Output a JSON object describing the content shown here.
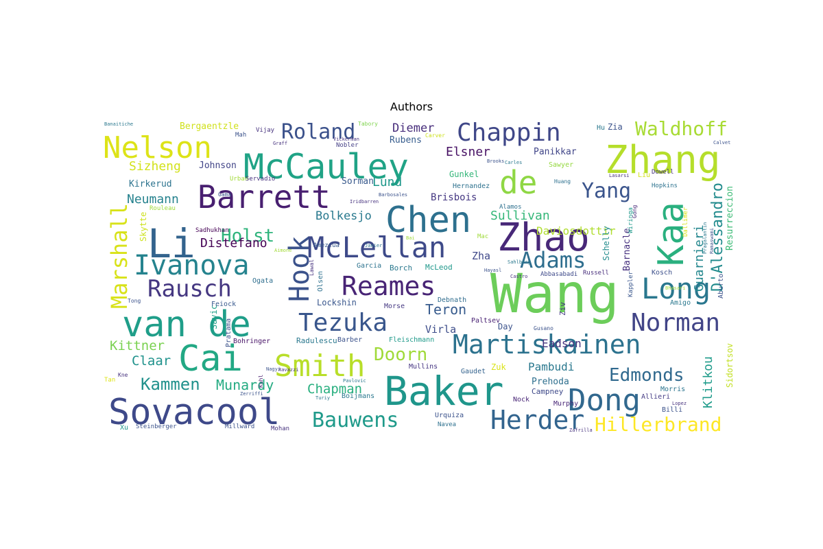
{
  "title": "Authors",
  "words": [
    {
      "text": "Wang",
      "color": "#6ccd5a"
    },
    {
      "text": "Baker",
      "color": "#1f968b"
    },
    {
      "text": "McCauley",
      "color": "#20a386"
    },
    {
      "text": "Zhang",
      "color": "#b5de2b"
    },
    {
      "text": "Chen",
      "color": "#2d708e"
    },
    {
      "text": "Zhao",
      "color": "#482878"
    },
    {
      "text": "Sovacool",
      "color": "#3e4989"
    },
    {
      "text": "van de",
      "color": "#1f9e89"
    },
    {
      "text": "Li",
      "color": "#33638d"
    },
    {
      "text": "Kaa",
      "color": "#2ab07f"
    },
    {
      "text": "Cai",
      "color": "#22a884"
    },
    {
      "text": "de",
      "color": "#8fd744"
    },
    {
      "text": "Hook",
      "color": "#3b528b"
    },
    {
      "text": "Nelson",
      "color": "#dde318"
    },
    {
      "text": "Barrett",
      "color": "#481f70"
    },
    {
      "text": "McLellan",
      "color": "#3e4a89"
    },
    {
      "text": "Martiskainen",
      "color": "#2c728e"
    },
    {
      "text": "Smith",
      "color": "#b8de29"
    },
    {
      "text": "Tezuka",
      "color": "#39568c"
    },
    {
      "text": "Ivanova",
      "color": "#25838e"
    },
    {
      "text": "Reames",
      "color": "#482475"
    },
    {
      "text": "Marshall",
      "color": "#d8e219"
    },
    {
      "text": "Dong",
      "color": "#31688e"
    },
    {
      "text": "Chappin",
      "color": "#3f4788"
    },
    {
      "text": "Long",
      "color": "#2a778e"
    },
    {
      "text": "Rausch",
      "color": "#453781"
    },
    {
      "text": "Norman",
      "color": "#414487"
    },
    {
      "text": "Herder",
      "color": "#32648e"
    },
    {
      "text": "Bauwens",
      "color": "#1f9a8a"
    },
    {
      "text": "Hillerbrand",
      "color": "#fde725"
    },
    {
      "text": "Adams",
      "color": "#2e6e8e"
    },
    {
      "text": "Yang",
      "color": "#3a548c"
    },
    {
      "text": "Waldhoff",
      "color": "#a8db34"
    },
    {
      "text": "Edmonds",
      "color": "#30698e"
    },
    {
      "text": "Kammen",
      "color": "#21918c"
    },
    {
      "text": "Roland",
      "color": "#3b518b"
    },
    {
      "text": "Holst",
      "color": "#2fb47c"
    },
    {
      "text": "Doorn",
      "color": "#a0da39"
    },
    {
      "text": "D'Alessandro",
      "color": "#228b8d"
    },
    {
      "text": "Munardy",
      "color": "#25ab82"
    },
    {
      "text": "Distefano",
      "color": "#440154"
    },
    {
      "text": "Teron",
      "color": "#375b8d"
    },
    {
      "text": "Chapman",
      "color": "#29af7f"
    },
    {
      "text": "Klitkou",
      "color": "#1e9b8a"
    },
    {
      "text": "Guarnieri",
      "color": "#24878e"
    },
    {
      "text": "Claar",
      "color": "#20928c"
    },
    {
      "text": "Kittner",
      "color": "#7ad151"
    },
    {
      "text": "Sizheng",
      "color": "#d2e21b"
    },
    {
      "text": "Neumann",
      "color": "#26828e"
    },
    {
      "text": "Daviosdottir",
      "color": "#b0dd2f"
    },
    {
      "text": "Sullivan",
      "color": "#35b779"
    },
    {
      "text": "Elsner",
      "color": "#471164"
    },
    {
      "text": "Diemer",
      "color": "#472d7b"
    },
    {
      "text": "Bolkesjo",
      "color": "#29798e"
    },
    {
      "text": "Lund",
      "color": "#1f988b"
    },
    {
      "text": "Pambudi",
      "color": "#2a788e"
    },
    {
      "text": "Eadson",
      "color": "#46337e"
    },
    {
      "text": "Virla",
      "color": "#3d4d8a"
    },
    {
      "text": "Zha",
      "color": "#3f4889"
    },
    {
      "text": "Johnson",
      "color": "#414487"
    },
    {
      "text": "Kirkerud",
      "color": "#2c738e"
    },
    {
      "text": "Sorman",
      "color": "#38598c"
    },
    {
      "text": "Brisbois",
      "color": "#453882"
    },
    {
      "text": "Bergaentzle",
      "color": "#d0e11c"
    },
    {
      "text": "Rubens",
      "color": "#365c8d"
    },
    {
      "text": "Panikkar",
      "color": "#404588"
    },
    {
      "text": "Gunkel",
      "color": "#34b679"
    },
    {
      "text": "Hernandez",
      "color": "#2d718e"
    },
    {
      "text": "Lockshin",
      "color": "#39568c"
    },
    {
      "text": "Barnacle",
      "color": "#46307e"
    },
    {
      "text": "Resurreccion",
      "color": "#3bbb75"
    },
    {
      "text": "Skytte",
      "color": "#cde11d"
    },
    {
      "text": "Savic",
      "color": "#1f9f88"
    },
    {
      "text": "Feiock",
      "color": "#38588c"
    },
    {
      "text": "Prehoda",
      "color": "#2e6f8e"
    },
    {
      "text": "Campney",
      "color": "#3e4989"
    },
    {
      "text": "Nock",
      "color": "#482576"
    },
    {
      "text": "Murphy",
      "color": "#482677"
    },
    {
      "text": "Allieri",
      "color": "#443b84"
    },
    {
      "text": "Billi",
      "color": "#3b528b"
    },
    {
      "text": "Morris",
      "color": "#2b748e"
    },
    {
      "text": "Sidortsov",
      "color": "#c2df23"
    },
    {
      "text": "Schelly",
      "color": "#228c8d"
    },
    {
      "text": "Kosch",
      "color": "#3c4f8a"
    },
    {
      "text": "Mullins",
      "color": "#453581"
    },
    {
      "text": "Gaudet",
      "color": "#33628d"
    },
    {
      "text": "Zuk",
      "color": "#dae319"
    },
    {
      "text": "Day",
      "color": "#3b528b"
    },
    {
      "text": "Paltsev",
      "color": "#482173"
    },
    {
      "text": "Debnath",
      "color": "#2f6c8e"
    },
    {
      "text": "Morse",
      "color": "#453882"
    },
    {
      "text": "Barber",
      "color": "#3b528b"
    },
    {
      "text": "Fleischmann",
      "color": "#1f9a8a"
    },
    {
      "text": "Radulescu",
      "color": "#2a788e"
    },
    {
      "text": "Bohringer",
      "color": "#481467"
    },
    {
      "text": "Pratama",
      "color": "#3b528b"
    },
    {
      "text": "Ogata",
      "color": "#2e6e8e"
    },
    {
      "text": "Olsen",
      "color": "#2d708e"
    },
    {
      "text": "Lawal",
      "color": "#46327e"
    },
    {
      "text": "Borch",
      "color": "#2a788e"
    },
    {
      "text": "McLeod",
      "color": "#1f988b"
    },
    {
      "text": "Garcia",
      "color": "#2c728e"
    },
    {
      "text": "Amezcua",
      "color": "#38598c"
    },
    {
      "text": "Sadhukhan",
      "color": "#440154"
    },
    {
      "text": "Rouleau",
      "color": "#9fda3a"
    },
    {
      "text": "Gama",
      "color": "#3b528b"
    },
    {
      "text": "Urban",
      "color": "#a2da37"
    },
    {
      "text": "Servadio",
      "color": "#46307e"
    },
    {
      "text": "Mah",
      "color": "#3b528b"
    },
    {
      "text": "Vijay",
      "color": "#46327e"
    },
    {
      "text": "Tabory",
      "color": "#7fd34e"
    },
    {
      "text": "Nobler",
      "color": "#433e85"
    },
    {
      "text": "Carver",
      "color": "#cde11d"
    },
    {
      "text": "Hu",
      "color": "#2a788e"
    },
    {
      "text": "Zia",
      "color": "#3b528b"
    },
    {
      "text": "Sawyer",
      "color": "#95d840"
    },
    {
      "text": "Huang",
      "color": "#2d708e"
    },
    {
      "text": "Liu",
      "color": "#d2e21b"
    },
    {
      "text": "Dowell",
      "color": "#46327e"
    },
    {
      "text": "Hopkins",
      "color": "#2c728e"
    },
    {
      "text": "Gong",
      "color": "#482878"
    },
    {
      "text": "Wiringa",
      "color": "#1f988b"
    },
    {
      "text": "Kappler",
      "color": "#39568c"
    },
    {
      "text": "Abbasabadi",
      "color": "#3e4989"
    },
    {
      "text": "Russell",
      "color": "#472d7b"
    },
    {
      "text": "Alamos",
      "color": "#2d708e"
    },
    {
      "text": "Mac",
      "color": "#9fda3a"
    },
    {
      "text": "Ziv",
      "color": "#453882"
    },
    {
      "text": "Gusano",
      "color": "#3b528b"
    },
    {
      "text": "Amigo",
      "color": "#2a788e"
    },
    {
      "text": "Aburto",
      "color": "#3b528b"
    },
    {
      "text": "Xu",
      "color": "#1f988b"
    },
    {
      "text": "Steinberger",
      "color": "#3b528b"
    },
    {
      "text": "Millward",
      "color": "#3b528b"
    },
    {
      "text": "Mohan",
      "color": "#46327e"
    },
    {
      "text": "Navea",
      "color": "#2d708e"
    },
    {
      "text": "Urquiza",
      "color": "#3b528b"
    },
    {
      "text": "Boijmans",
      "color": "#2a788e"
    },
    {
      "text": "Tan",
      "color": "#dde318"
    },
    {
      "text": "Kne",
      "color": "#46327e"
    },
    {
      "text": "Kuhl",
      "color": "#481f70"
    },
    {
      "text": "Tong",
      "color": "#3b528b"
    },
    {
      "text": "Banaitiche",
      "color": "#2a788e"
    },
    {
      "text": "Graff",
      "color": "#46327e"
    },
    {
      "text": "Brooks",
      "color": "#3b528b"
    },
    {
      "text": "Carles",
      "color": "#2a788e"
    },
    {
      "text": "Lasarsi",
      "color": "#46327e"
    },
    {
      "text": "Calvet",
      "color": "#3b528b"
    },
    {
      "text": "Iridbarren",
      "color": "#46327e"
    },
    {
      "text": "Barbosales",
      "color": "#3b528b"
    },
    {
      "text": "Aimone",
      "color": "#a2da37"
    },
    {
      "text": "Janier",
      "color": "#2c728e"
    },
    {
      "text": "Bai",
      "color": "#a0da39"
    },
    {
      "text": "Vickerman",
      "color": "#46327e"
    },
    {
      "text": "Sahlberg",
      "color": "#2a788e"
    },
    {
      "text": "Castro",
      "color": "#46327e"
    },
    {
      "text": "Hayasl",
      "color": "#3b528b"
    },
    {
      "text": "Pragalantin",
      "color": "#2a788e"
    },
    {
      "text": "Ramaswami",
      "color": "#3b528b"
    },
    {
      "text": "Dallimer",
      "color": "#d8e219"
    },
    {
      "text": "Bhasari",
      "color": "#a0da39"
    },
    {
      "text": "Zerriffi",
      "color": "#3b528b"
    },
    {
      "text": "Lopez",
      "color": "#46327e"
    },
    {
      "text": "Zafrilla",
      "color": "#46327e"
    },
    {
      "text": "Pavlovic",
      "color": "#2a788e"
    },
    {
      "text": "Ravazzi",
      "color": "#46327e"
    },
    {
      "text": "Nagyi",
      "color": "#3b528b"
    },
    {
      "text": "Turiy",
      "color": "#2a788e"
    }
  ]
}
